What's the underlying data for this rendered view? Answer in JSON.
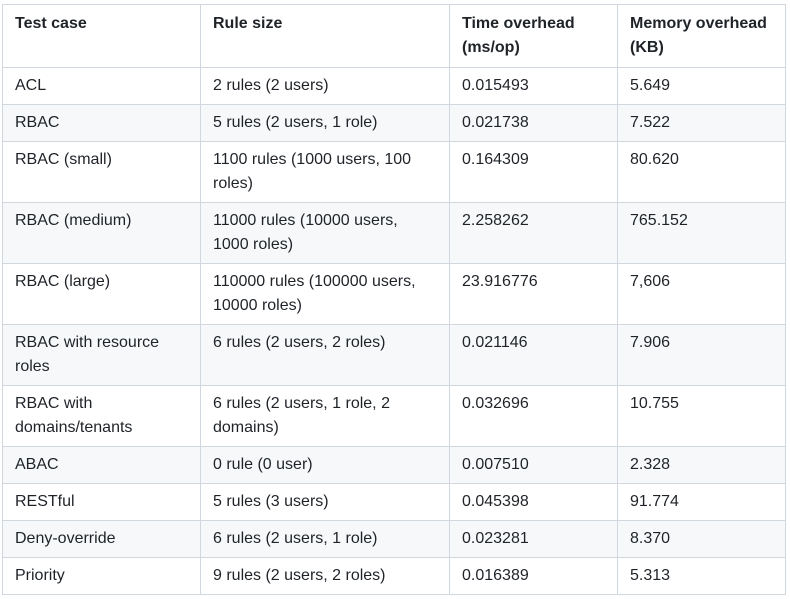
{
  "table": {
    "headers": [
      "Test case",
      "Rule size",
      "Time overhead (ms/op)",
      "Memory overhead (KB)"
    ],
    "rows": [
      [
        "ACL",
        "2 rules (2 users)",
        "0.015493",
        "5.649"
      ],
      [
        "RBAC",
        "5 rules (2 users, 1 role)",
        "0.021738",
        "7.522"
      ],
      [
        "RBAC (small)",
        "1100 rules (1000 users, 100 roles)",
        "0.164309",
        "80.620"
      ],
      [
        "RBAC (medium)",
        "11000 rules (10000 users, 1000 roles)",
        "2.258262",
        "765.152"
      ],
      [
        "RBAC (large)",
        "110000 rules (100000 users, 10000 roles)",
        "23.916776",
        "7,606"
      ],
      [
        "RBAC with resource roles",
        "6 rules (2 users, 2 roles)",
        "0.021146",
        "7.906"
      ],
      [
        "RBAC with domains/tenants",
        "6 rules (2 users, 1 role, 2 domains)",
        "0.032696",
        "10.755"
      ],
      [
        "ABAC",
        "0 rule (0 user)",
        "0.007510",
        "2.328"
      ],
      [
        "RESTful",
        "5 rules (3 users)",
        "0.045398",
        "91.774"
      ],
      [
        "Deny-override",
        "6 rules (2 users, 1 role)",
        "0.023281",
        "8.370"
      ],
      [
        "Priority",
        "9 rules (2 users, 2 roles)",
        "0.016389",
        "5.313"
      ]
    ]
  }
}
